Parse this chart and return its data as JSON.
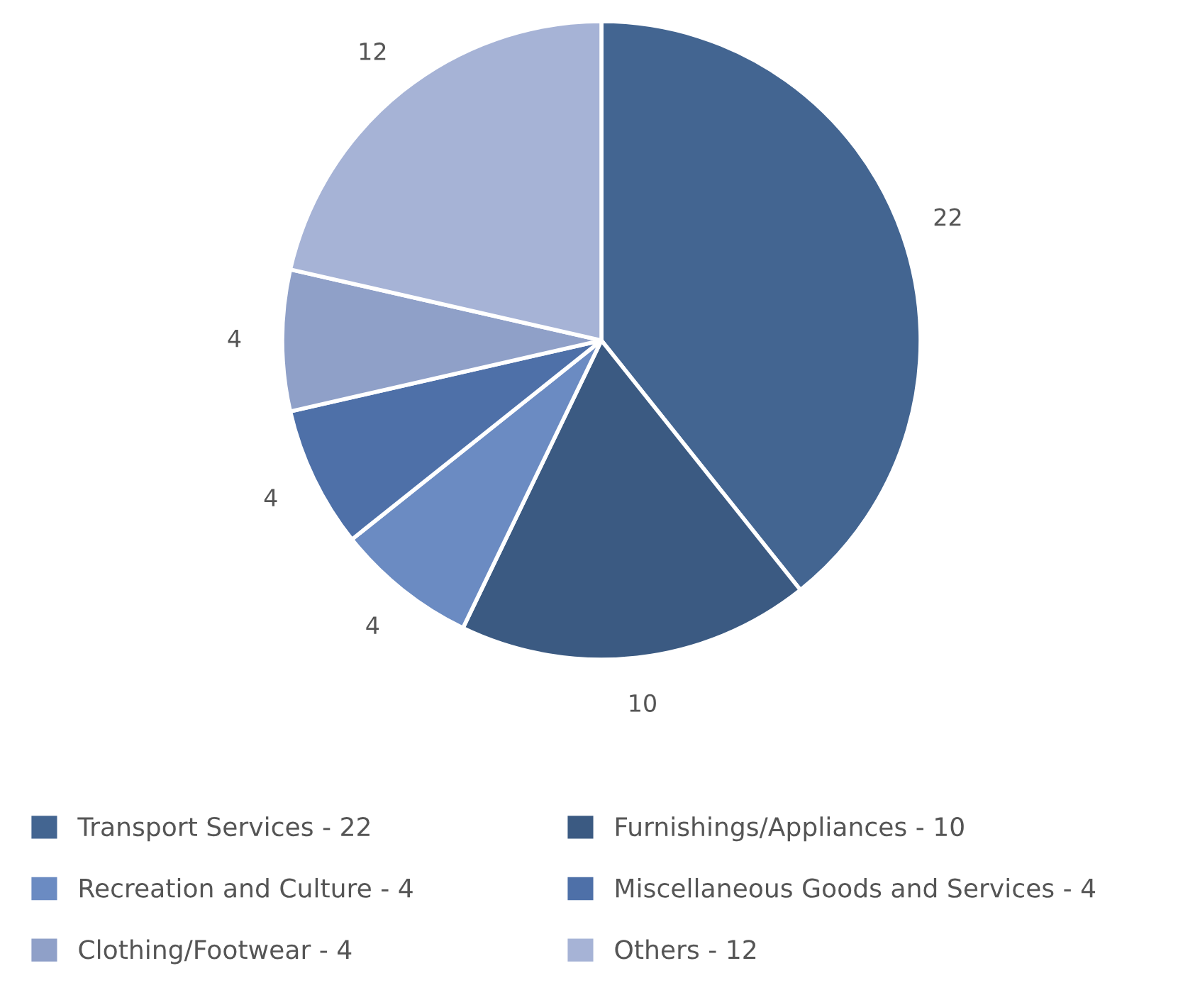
{
  "chart_data": {
    "type": "pie",
    "categories": [
      "Transport Services - 22",
      "Furnishings/Appliances - 10",
      "Recreation and Culture - 4",
      "Miscellaneous Goods and Services - 4",
      "Clothing/Footwear - 4",
      "Others - 12"
    ],
    "values": [
      22,
      10,
      4,
      4,
      4,
      12
    ],
    "colors": [
      "#436591",
      "#3b5a82",
      "#6b8bc2",
      "#4e70a8",
      "#8fa0c8",
      "#a6b3d6"
    ],
    "data_labels": true,
    "legend": "bottom"
  }
}
